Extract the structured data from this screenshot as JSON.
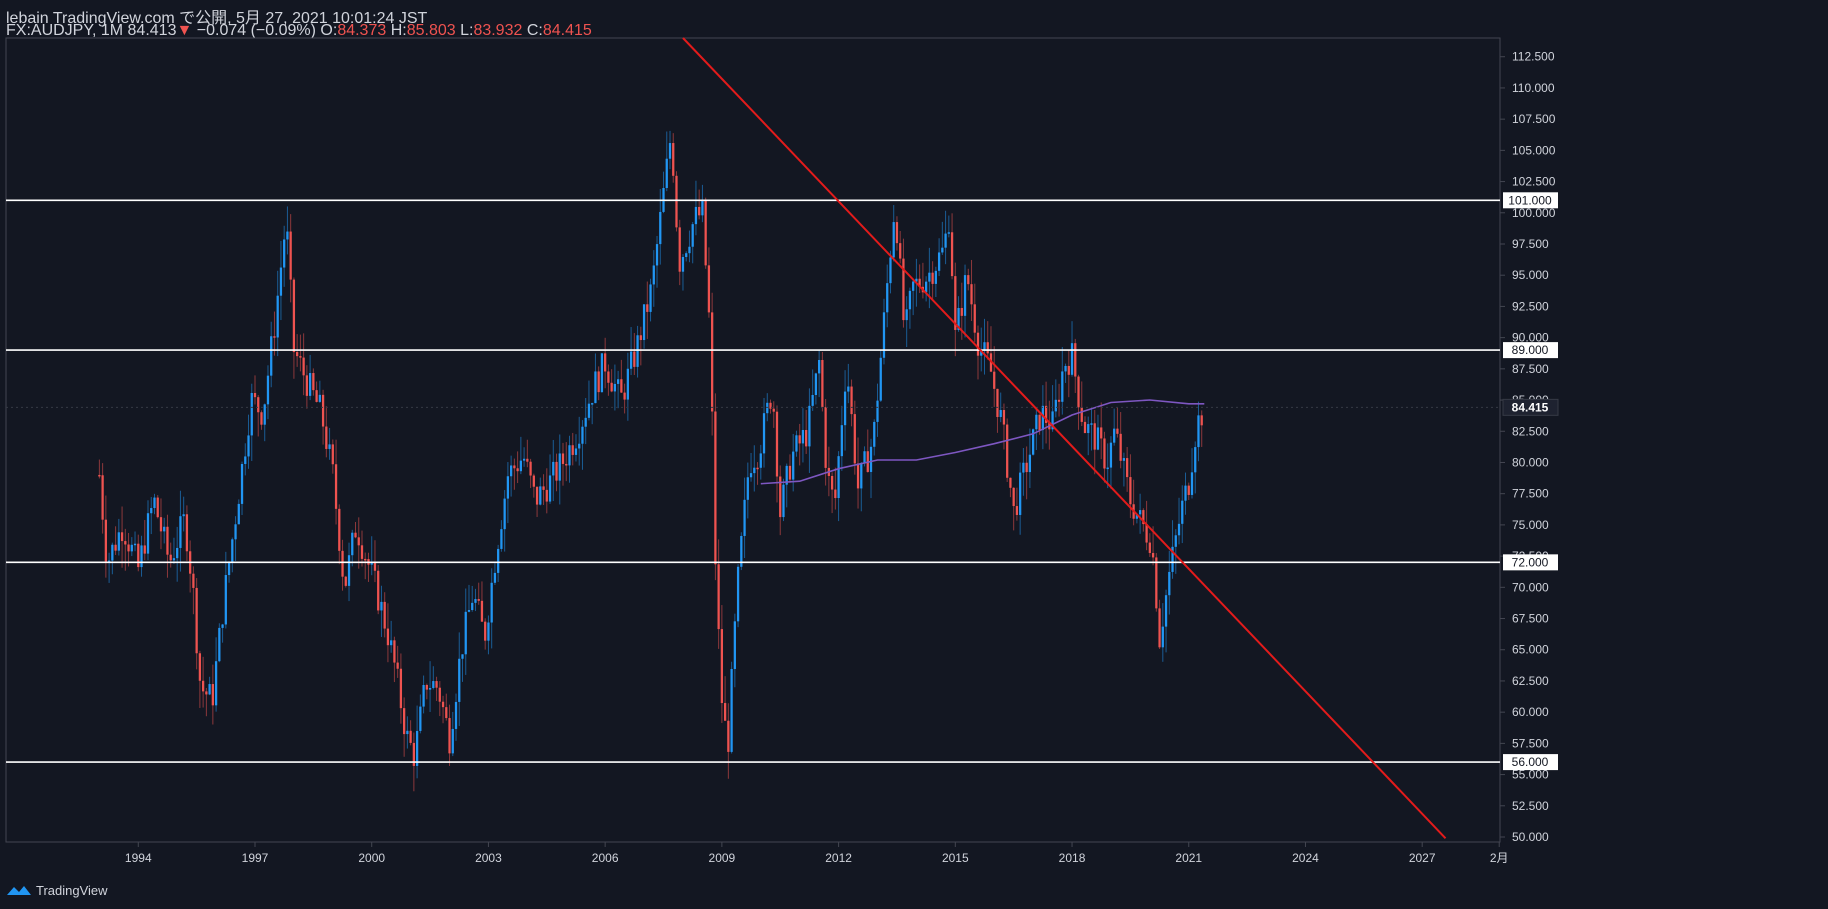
{
  "header": {
    "line1": "lebain TradingView.com で公開, 5月 27, 2021 10:01:24 JST",
    "symbol": "FX:AUDJPY, 1M",
    "last": "84.413",
    "arrow": "▼",
    "change": "−0.074 (−0.09%)",
    "o_label": "O:",
    "o_val": "84.373",
    "h_label": "H:",
    "h_val": "85.803",
    "l_label": "L:",
    "l_val": "83.932",
    "c_label": "C:",
    "c_val": "84.415"
  },
  "footer": {
    "brand": "TradingView"
  },
  "colors": {
    "background": "#131722",
    "up": "#2196f3",
    "down": "#ef5350",
    "ma": "#7e57c2",
    "trendline": "#e31b1b",
    "hline": "#ffffff",
    "text": "#d1d4dc",
    "border": "#434651"
  },
  "chart_data": {
    "type": "candlestick",
    "symbol": "FX:AUDJPY",
    "timeframe": "1M",
    "y_range": [
      49.6,
      114.0
    ],
    "y_ticks": [
      "112.500",
      "110.000",
      "107.500",
      "105.000",
      "102.500",
      "100.000",
      "97.500",
      "95.000",
      "92.500",
      "90.000",
      "87.500",
      "85.000",
      "82.500",
      "80.000",
      "77.500",
      "75.000",
      "72.500",
      "70.000",
      "67.500",
      "65.000",
      "62.500",
      "60.000",
      "57.500",
      "55.000",
      "52.500",
      "50.000"
    ],
    "x_range": [
      1990.6,
      2029.0
    ],
    "x_ticks": [
      {
        "label": "1994",
        "year": 1994
      },
      {
        "label": "1997",
        "year": 1997
      },
      {
        "label": "2000",
        "year": 2000
      },
      {
        "label": "2003",
        "year": 2003
      },
      {
        "label": "2006",
        "year": 2006
      },
      {
        "label": "2009",
        "year": 2009
      },
      {
        "label": "2012",
        "year": 2012
      },
      {
        "label": "2015",
        "year": 2015
      },
      {
        "label": "2018",
        "year": 2018
      },
      {
        "label": "2021",
        "year": 2021
      },
      {
        "label": "2024",
        "year": 2024
      },
      {
        "label": "2027",
        "year": 2027
      },
      {
        "label": "2月",
        "year": 2028.98
      }
    ],
    "horizontal_levels": [
      {
        "value": 101.0,
        "label": "101.000"
      },
      {
        "value": 89.0,
        "label": "89.000"
      },
      {
        "value": 72.0,
        "label": "72.000"
      },
      {
        "value": 56.0,
        "label": "56.000"
      }
    ],
    "last_price": {
      "value": 84.415,
      "label": "84.415"
    },
    "trendline": {
      "x1": 2008.0,
      "y1": 114.0,
      "x2": 2027.6,
      "y2": 49.9
    },
    "anchors": [
      [
        1993.0,
        79.0
      ],
      [
        1993.2,
        72.0
      ],
      [
        1993.6,
        75.0
      ],
      [
        1994.0,
        71.5
      ],
      [
        1994.4,
        77.0
      ],
      [
        1994.8,
        72.0
      ],
      [
        1995.2,
        75.5
      ],
      [
        1995.4,
        70.0
      ],
      [
        1995.6,
        62.0
      ],
      [
        1995.9,
        61.0
      ],
      [
        1996.2,
        69.0
      ],
      [
        1996.6,
        78.0
      ],
      [
        1996.9,
        85.0
      ],
      [
        1997.2,
        84.0
      ],
      [
        1997.5,
        91.0
      ],
      [
        1997.8,
        99.5
      ],
      [
        1998.0,
        89.0
      ],
      [
        1998.4,
        86.0
      ],
      [
        1998.7,
        84.0
      ],
      [
        1999.0,
        79.0
      ],
      [
        1999.3,
        70.0
      ],
      [
        1999.6,
        75.0
      ],
      [
        2000.1,
        70.0
      ],
      [
        2000.4,
        66.5
      ],
      [
        2000.6,
        63.5
      ],
      [
        2000.9,
        58.0
      ],
      [
        2001.1,
        56.5
      ],
      [
        2001.4,
        62.5
      ],
      [
        2001.7,
        62.0
      ],
      [
        2002.0,
        58.0
      ],
      [
        2002.3,
        65.0
      ],
      [
        2002.6,
        69.5
      ],
      [
        2002.9,
        66.0
      ],
      [
        2003.2,
        73.0
      ],
      [
        2003.5,
        79.0
      ],
      [
        2003.9,
        80.5
      ],
      [
        2004.2,
        77.0
      ],
      [
        2004.6,
        78.5
      ],
      [
        2004.9,
        80.0
      ],
      [
        2005.3,
        82.5
      ],
      [
        2005.7,
        86.0
      ],
      [
        2006.0,
        88.0
      ],
      [
        2006.4,
        85.0
      ],
      [
        2006.8,
        89.0
      ],
      [
        2007.2,
        94.0
      ],
      [
        2007.6,
        104.0
      ],
      [
        2007.7,
        106.5
      ],
      [
        2007.9,
        96.0
      ],
      [
        2008.3,
        99.5
      ],
      [
        2008.5,
        100.0
      ],
      [
        2008.7,
        90.0
      ],
      [
        2008.85,
        70.0
      ],
      [
        2009.0,
        61.0
      ],
      [
        2009.15,
        57.0
      ],
      [
        2009.4,
        70.0
      ],
      [
        2009.7,
        80.0
      ],
      [
        2009.95,
        81.0
      ],
      [
        2010.3,
        86.0
      ],
      [
        2010.5,
        76.0
      ],
      [
        2010.8,
        80.5
      ],
      [
        2011.2,
        82.5
      ],
      [
        2011.5,
        88.0
      ],
      [
        2011.7,
        79.0
      ],
      [
        2011.9,
        76.5
      ],
      [
        2012.2,
        88.0
      ],
      [
        2012.5,
        78.0
      ],
      [
        2012.9,
        82.0
      ],
      [
        2013.3,
        96.0
      ],
      [
        2013.45,
        101.0
      ],
      [
        2013.7,
        90.0
      ],
      [
        2013.9,
        94.0
      ],
      [
        2014.3,
        95.0
      ],
      [
        2014.7,
        97.0
      ],
      [
        2014.85,
        100.0
      ],
      [
        2015.0,
        90.0
      ],
      [
        2015.3,
        95.0
      ],
      [
        2015.6,
        89.5
      ],
      [
        2015.9,
        87.5
      ],
      [
        2016.2,
        83.0
      ],
      [
        2016.5,
        76.0
      ],
      [
        2016.8,
        79.5
      ],
      [
        2017.2,
        84.0
      ],
      [
        2017.5,
        83.0
      ],
      [
        2017.8,
        88.0
      ],
      [
        2018.0,
        88.5
      ],
      [
        2018.3,
        83.0
      ],
      [
        2018.6,
        82.0
      ],
      [
        2018.9,
        80.0
      ],
      [
        2019.1,
        82.5
      ],
      [
        2019.5,
        77.0
      ],
      [
        2019.8,
        75.0
      ],
      [
        2020.0,
        74.0
      ],
      [
        2020.1,
        72.0
      ],
      [
        2020.25,
        66.0
      ],
      [
        2020.5,
        71.0
      ],
      [
        2020.8,
        76.0
      ],
      [
        2021.0,
        78.5
      ],
      [
        2021.2,
        83.0
      ],
      [
        2021.4,
        84.4
      ]
    ],
    "moving_average": [
      [
        2010.0,
        78.3
      ],
      [
        2011.0,
        78.5
      ],
      [
        2012.0,
        79.5
      ],
      [
        2013.0,
        80.2
      ],
      [
        2014.0,
        80.2
      ],
      [
        2015.0,
        80.8
      ],
      [
        2016.0,
        81.5
      ],
      [
        2017.0,
        82.3
      ],
      [
        2018.0,
        83.8
      ],
      [
        2019.0,
        84.8
      ],
      [
        2020.0,
        85.0
      ],
      [
        2021.0,
        84.7
      ],
      [
        2021.4,
        84.7
      ]
    ]
  }
}
